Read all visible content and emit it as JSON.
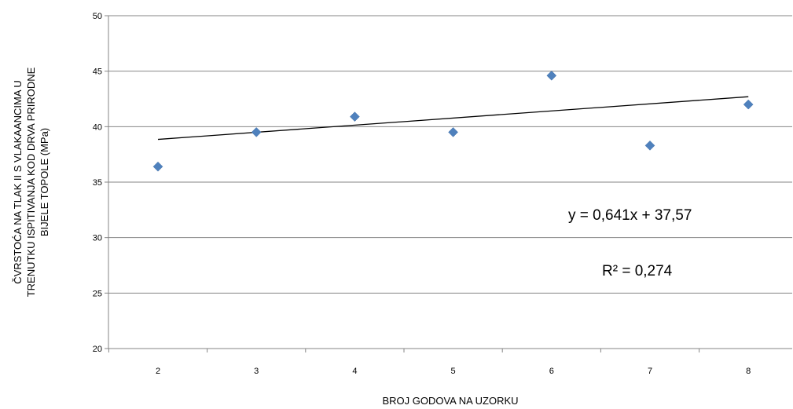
{
  "chart_data": {
    "type": "scatter",
    "title": "",
    "xlabel": "BROJ GODOVA NA UZORKU",
    "ylabel_lines": [
      "ČVRSTOĆA NA TLAK II S VLAKAANCIMA U",
      "TRENUTKU ISPITIVANJA KOD DRVA PRIRODNE",
      "BIJELE TOPOLE (MPa)"
    ],
    "x_categories": [
      "2",
      "3",
      "4",
      "5",
      "6",
      "7",
      "8"
    ],
    "ylim": [
      20,
      50
    ],
    "y_ticks": [
      20,
      25,
      30,
      35,
      40,
      45,
      50
    ],
    "grid": "horizontal",
    "series": [
      {
        "x": [
          2,
          3,
          4,
          5,
          6,
          7,
          8
        ],
        "y": [
          36.4,
          39.5,
          40.9,
          39.5,
          44.6,
          38.3,
          42.0
        ],
        "color": "#4f81bd",
        "marker": "diamond"
      }
    ],
    "trendline": {
      "type": "linear",
      "slope": 0.641,
      "intercept": 37.57,
      "x_range": [
        2,
        8
      ],
      "equation_label": "y = 0,641x  + 37,57",
      "r2_label": "R² = 0,274"
    }
  }
}
